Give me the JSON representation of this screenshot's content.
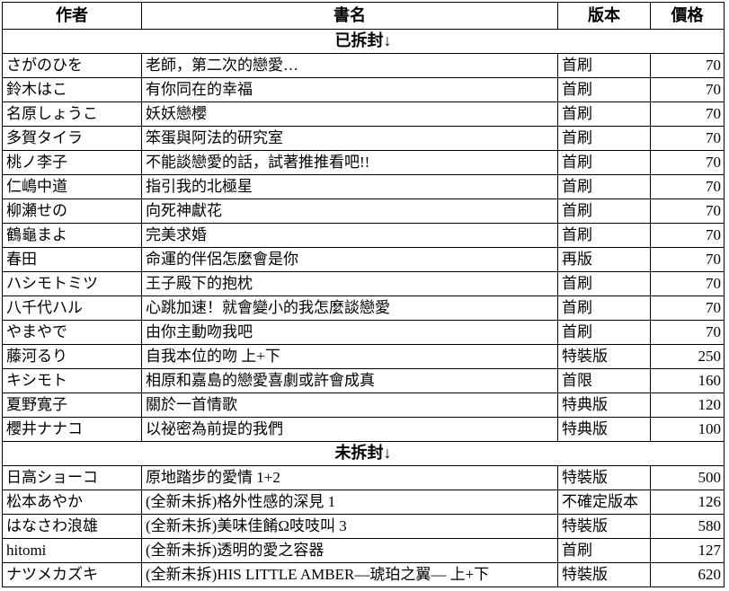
{
  "colors": {
    "background": "#ffffff",
    "text": "#000000",
    "border": "#000000"
  },
  "table": {
    "headers": [
      "作者",
      "書名",
      "版本",
      "價格"
    ],
    "sections": [
      {
        "label": "已拆封↓",
        "rows": [
          [
            "さがのひを",
            "老師，第二次的戀愛…",
            "首刷",
            "70"
          ],
          [
            "鈴木はこ",
            "有你同在的幸福",
            "首刷",
            "70"
          ],
          [
            "名原しょうこ",
            "妖妖戀櫻",
            "首刷",
            "70"
          ],
          [
            "多賀タイラ",
            "笨蛋與阿法的研究室",
            "首刷",
            "70"
          ],
          [
            "桃ノ李子",
            "不能談戀愛的話，試著推推看吧!!",
            "首刷",
            "70"
          ],
          [
            "仁嶋中道",
            "指引我的北極星",
            "首刷",
            "70"
          ],
          [
            "柳瀬せの",
            "向死神獻花",
            "首刷",
            "70"
          ],
          [
            "鶴龜まよ",
            "完美求婚",
            "首刷",
            "70"
          ],
          [
            "春田",
            "命運的伴侶怎麼會是你",
            "再版",
            "70"
          ],
          [
            "ハシモトミツ",
            "王子殿下的抱枕",
            "首刷",
            "70"
          ],
          [
            "八千代ハル",
            "心跳加速！就會變小的我怎麼談戀愛",
            "首刷",
            "70"
          ],
          [
            "やまやで",
            "由你主動吻我吧",
            "首刷",
            "70"
          ],
          [
            "藤河るり",
            "自我本位的吻 上+下",
            "特裝版",
            "250"
          ],
          [
            "キシモト",
            "相原和嘉島的戀愛喜劇或許會成真",
            "首限",
            "160"
          ],
          [
            "夏野寛子",
            "關於一首情歌",
            "特典版",
            "120"
          ],
          [
            "櫻井ナナコ",
            "以祕密為前提的我們",
            "特典版",
            "100"
          ]
        ]
      },
      {
        "label": "未拆封↓",
        "rows": [
          [
            "日高ショーコ",
            "原地踏步的愛情 1+2",
            "特裝版",
            "500"
          ],
          [
            "松本あやか",
            "(全新未拆)格外性感的深見 1",
            "不確定版本",
            "126"
          ],
          [
            "はなさわ浪雄",
            "(全新未拆)美味佳餚Ω吱吱叫 3",
            "特裝版",
            "580"
          ],
          [
            "hitomi",
            "(全新未拆)透明的愛之容器",
            "首刷",
            "127"
          ],
          [
            "ナツメカズキ",
            "(全新未拆)HIS LITTLE AMBER—琥珀之翼— 上+下",
            "特裝版",
            "620"
          ]
        ]
      }
    ]
  }
}
